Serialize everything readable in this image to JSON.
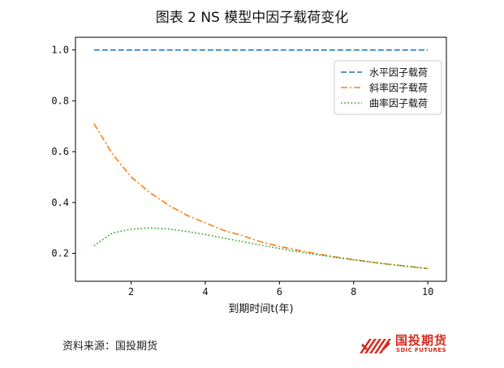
{
  "header": {
    "title": "图表 2 NS 模型中因子载荷变化"
  },
  "footer": {
    "source": "资料来源：国投期货"
  },
  "brand": {
    "name_cn": "国投期货",
    "name_en": "SDIC FUTURES",
    "color": "#d52b1e"
  },
  "chart_data": {
    "type": "line",
    "title": "",
    "xlabel": "到期时间t(年)",
    "ylabel": "",
    "xlim": [
      0.5,
      10.5
    ],
    "ylim": [
      0.09,
      1.05
    ],
    "x_ticks": [
      2,
      4,
      6,
      8,
      10
    ],
    "y_ticks": [
      0.2,
      0.4,
      0.6,
      0.8,
      1.0
    ],
    "legend_position": "top-right",
    "grid": false,
    "x": [
      1.0,
      1.5,
      2.0,
      2.5,
      3.0,
      3.5,
      4.0,
      4.5,
      5.0,
      5.5,
      6.0,
      6.5,
      7.0,
      7.5,
      8.0,
      8.5,
      9.0,
      9.5,
      10.0
    ],
    "series": [
      {
        "name": "水平因子载荷",
        "color": "#1f77b4",
        "dash": "dashed",
        "values": [
          1.0,
          1.0,
          1.0,
          1.0,
          1.0,
          1.0,
          1.0,
          1.0,
          1.0,
          1.0,
          1.0,
          1.0,
          1.0,
          1.0,
          1.0,
          1.0,
          1.0,
          1.0,
          1.0
        ]
      },
      {
        "name": "斜率因子载荷",
        "color": "#ff7f0e",
        "dash": "dashdot",
        "values": [
          0.71,
          0.59,
          0.5,
          0.44,
          0.39,
          0.35,
          0.32,
          0.29,
          0.27,
          0.245,
          0.227,
          0.212,
          0.198,
          0.186,
          0.175,
          0.165,
          0.156,
          0.148,
          0.14
        ]
      },
      {
        "name": "曲率因子载荷",
        "color": "#2ca02c",
        "dash": "dotted",
        "values": [
          0.23,
          0.28,
          0.295,
          0.3,
          0.296,
          0.286,
          0.274,
          0.26,
          0.246,
          0.232,
          0.219,
          0.206,
          0.195,
          0.184,
          0.174,
          0.165,
          0.156,
          0.148,
          0.14
        ]
      }
    ]
  }
}
